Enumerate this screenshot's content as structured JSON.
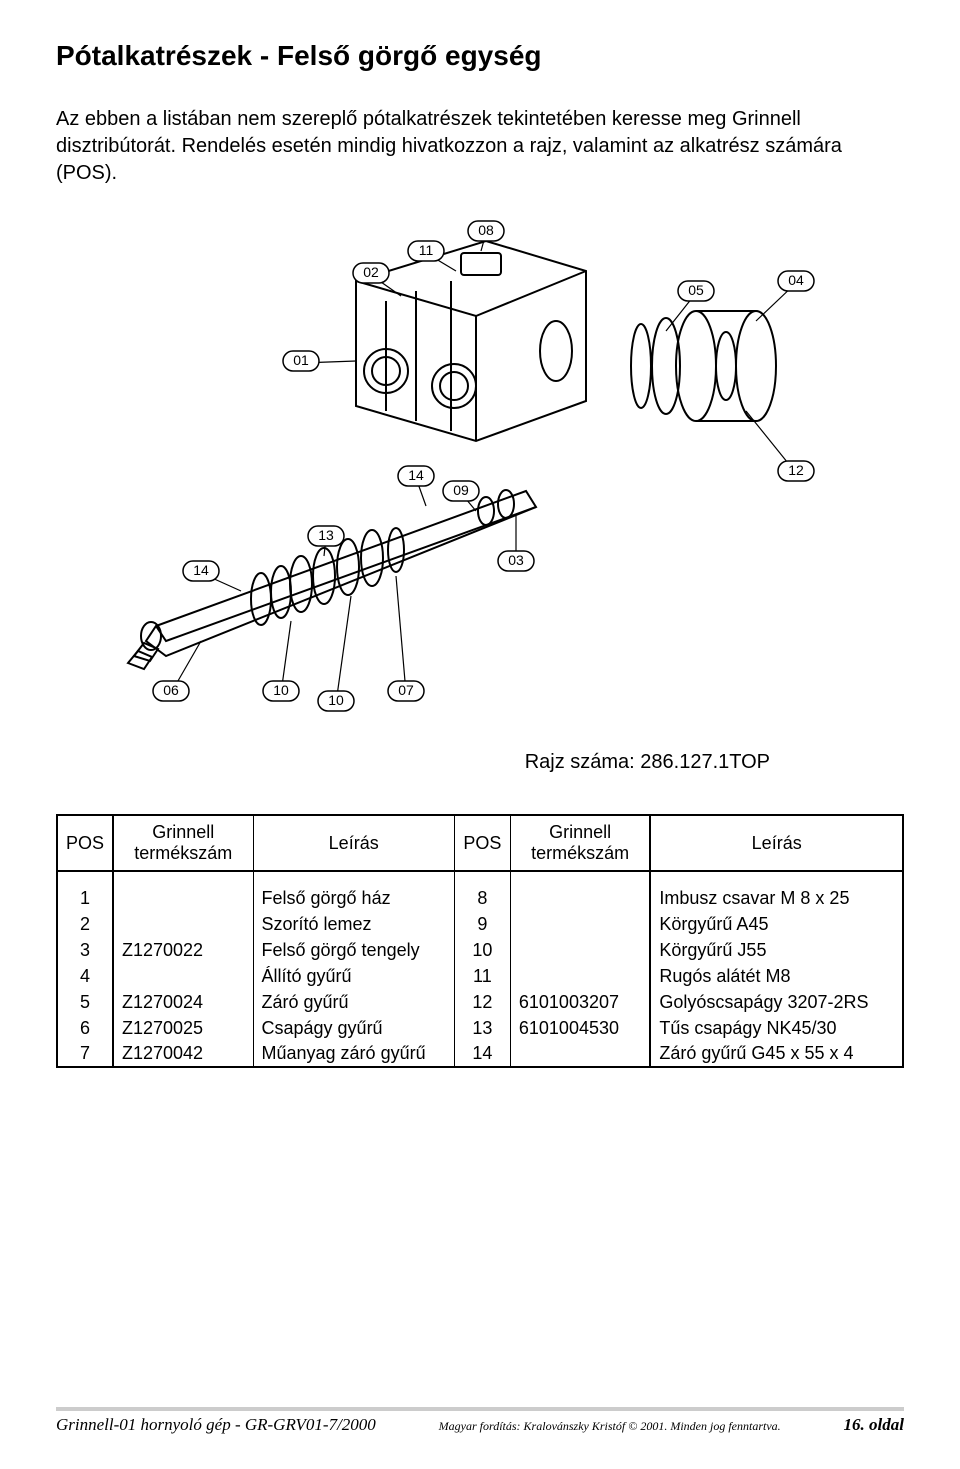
{
  "title": "Pótalkatrészek - Felső görgő egység",
  "intro": "Az ebben a listában nem szereplő pótalkatrészek tekintetében keresse meg Grinnell disztribútorát. Rendelés esetén mindig hivatkozzon a rajz, valamint az alkatrész számára (POS).",
  "drawing_number": "Rajz száma: 286.127.1TOP",
  "headers": {
    "pos": "POS",
    "code": "Grinnell termékszám",
    "desc": "Leírás"
  },
  "rows_left": [
    {
      "pos": "1",
      "code": "",
      "desc": "Felső görgő ház"
    },
    {
      "pos": "2",
      "code": "",
      "desc": "Szorító lemez"
    },
    {
      "pos": "3",
      "code": "Z1270022",
      "desc": "Felső görgő tengely"
    },
    {
      "pos": "4",
      "code": "",
      "desc": "Állító gyűrű"
    },
    {
      "pos": "5",
      "code": "Z1270024",
      "desc": "Záró gyűrű"
    },
    {
      "pos": "6",
      "code": "Z1270025",
      "desc": "Csapágy gyűrű"
    },
    {
      "pos": "7",
      "code": "Z1270042",
      "desc": "Műanyag záró gyűrű"
    }
  ],
  "rows_right": [
    {
      "pos": "8",
      "code": "",
      "desc": "Imbusz csavar M 8 x 25"
    },
    {
      "pos": "9",
      "code": "",
      "desc": "Körgyűrű A45"
    },
    {
      "pos": "10",
      "code": "",
      "desc": "Körgyűrű J55"
    },
    {
      "pos": "11",
      "code": "",
      "desc": "Rugós alátét M8"
    },
    {
      "pos": "12",
      "code": "6101003207",
      "desc": "Golyóscsapágy 3207-2RS"
    },
    {
      "pos": "13",
      "code": "6101004530",
      "desc": "Tűs csapágy NK45/30"
    },
    {
      "pos": "14",
      "code": "",
      "desc": "Záró gyűrű G45 x 55 x 4"
    }
  ],
  "diagram_callouts": [
    "08",
    "11",
    "02",
    "01",
    "04",
    "05",
    "14",
    "09",
    "03",
    "12",
    "13",
    "14",
    "06",
    "10",
    "10",
    "07"
  ],
  "footer": {
    "left": "Grinnell-01 hornyoló gép - GR-GRV01-7/2000",
    "mid": "Magyar fordítás: Kralovánszky Kristóf © 2001. Minden jog fenntartva.",
    "right": "16. oldal"
  },
  "colors": {
    "text": "#000000",
    "bg": "#ffffff",
    "rule": "#cccccc"
  }
}
